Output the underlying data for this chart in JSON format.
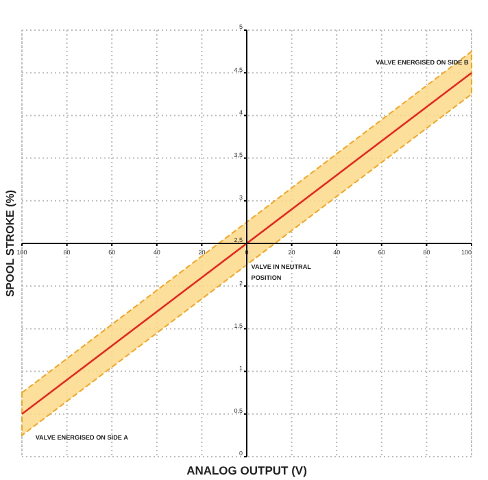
{
  "chart_data": {
    "type": "line",
    "xlabel": "ANALOG OUTPUT (V)",
    "ylabel": "SPOOL STROKE (%)",
    "x": [
      -100,
      100
    ],
    "series": [
      {
        "color": "#e8261f",
        "values": [
          0.5,
          4.5
        ],
        "lower": [
          0.25,
          4.25
        ],
        "upper": [
          0.75,
          4.75
        ]
      }
    ],
    "xlim": [
      -100,
      100
    ],
    "xticks": [
      {
        "value": -100,
        "label": "100"
      },
      {
        "value": -80,
        "label": "80"
      },
      {
        "value": -60,
        "label": "60"
      },
      {
        "value": -40,
        "label": "40"
      },
      {
        "value": -20,
        "label": "20"
      },
      0,
      20,
      40,
      60,
      80,
      100
    ],
    "ylim": [
      0,
      5
    ],
    "yticks": [
      0,
      {
        "value": 0.5,
        "label": "0,5"
      },
      1,
      {
        "value": 1.5,
        "label": "1,5"
      },
      2,
      {
        "value": 2.5,
        "label": "2,5"
      },
      3,
      {
        "value": 3.5,
        "label": "3,5"
      },
      4,
      {
        "value": 4.5,
        "label": "4,5"
      },
      5
    ],
    "grid": true,
    "line_style": "solid",
    "marker": "none",
    "annotations": [
      "VALVE ENERGISED ON SIDE B",
      "VALVE IN NEUTRAL POSITION",
      "VALVE ENERGISED ON SIDE A"
    ]
  }
}
